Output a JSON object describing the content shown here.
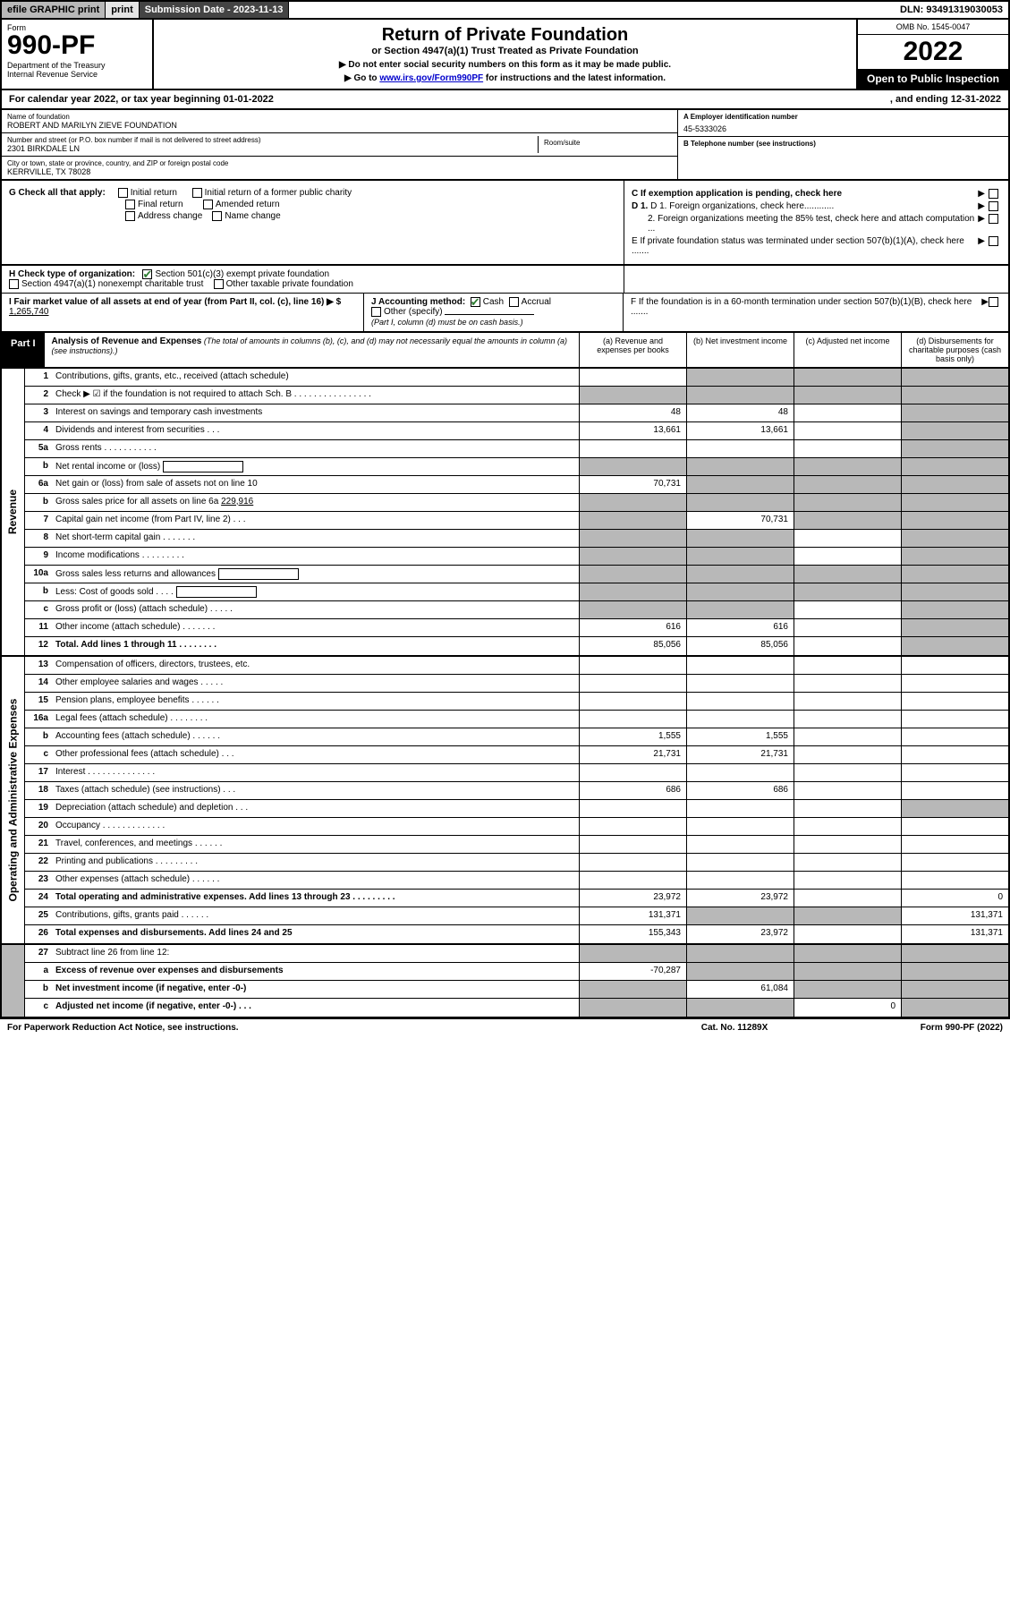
{
  "topbar": {
    "efile": "efile GRAPHIC print",
    "subdate_lbl": "Submission Date - 2023-11-13",
    "dln": "DLN: 93491319030053"
  },
  "header": {
    "form": "Form",
    "form_no": "990-PF",
    "dept": "Department of the Treasury\nInternal Revenue Service",
    "title": "Return of Private Foundation",
    "subtitle": "or Section 4947(a)(1) Trust Treated as Private Foundation",
    "instr1": "▶ Do not enter social security numbers on this form as it may be made public.",
    "instr2_pre": "▶ Go to ",
    "instr2_link": "www.irs.gov/Form990PF",
    "instr2_post": " for instructions and the latest information.",
    "omb": "OMB No. 1545-0047",
    "year": "2022",
    "open": "Open to Public Inspection"
  },
  "cal": {
    "left": "For calendar year 2022, or tax year beginning 01-01-2022",
    "right": ", and ending 12-31-2022"
  },
  "entity": {
    "name_lbl": "Name of foundation",
    "name": "ROBERT AND MARILYN ZIEVE FOUNDATION",
    "addr_lbl": "Number and street (or P.O. box number if mail is not delivered to street address)",
    "addr": "2301 BIRKDALE LN",
    "room_lbl": "Room/suite",
    "city_lbl": "City or town, state or province, country, and ZIP or foreign postal code",
    "city": "KERRVILLE, TX  78028",
    "a_lbl": "A Employer identification number",
    "a_val": "45-5333026",
    "b_lbl": "B Telephone number (see instructions)",
    "c_lbl": "C If exemption application is pending, check here",
    "d1": "D 1. Foreign organizations, check here............",
    "d2": "2. Foreign organizations meeting the 85% test, check here and attach computation ...",
    "e": "E  If private foundation status was terminated under section 507(b)(1)(A), check here .......",
    "f": "F  If the foundation is in a 60-month termination under section 507(b)(1)(B), check here ......."
  },
  "g": {
    "label": "G Check all that apply:",
    "opts": [
      "Initial return",
      "Final return",
      "Address change",
      "Initial return of a former public charity",
      "Amended return",
      "Name change"
    ]
  },
  "h": {
    "label": "H Check type of organization:",
    "opt1": "Section 501(c)(3) exempt private foundation",
    "opt2": "Section 4947(a)(1) nonexempt charitable trust",
    "opt3": "Other taxable private foundation"
  },
  "i": {
    "label": "I Fair market value of all assets at end of year (from Part II, col. (c), line 16) ▶ $",
    "val": "1,265,740"
  },
  "j": {
    "label": "J Accounting method:",
    "cash": "Cash",
    "accrual": "Accrual",
    "other": "Other (specify)",
    "note": "(Part I, column (d) must be on cash basis.)"
  },
  "part1": {
    "tab": "Part I",
    "title": "Analysis of Revenue and Expenses",
    "title_note": " (The total of amounts in columns (b), (c), and (d) may not necessarily equal the amounts in column (a) (see instructions).)",
    "col_a": "(a)  Revenue and expenses per books",
    "col_b": "(b)  Net investment income",
    "col_c": "(c)  Adjusted net income",
    "col_d": "(d)  Disbursements for charitable purposes (cash basis only)"
  },
  "sides": {
    "revenue": "Revenue",
    "expenses": "Operating and Administrative Expenses"
  },
  "rows": [
    {
      "n": "1",
      "lbl": "Contributions, gifts, grants, etc., received (attach schedule)",
      "a": "",
      "b": "g",
      "c": "g",
      "d": "g"
    },
    {
      "n": "2",
      "lbl": "Check ▶ ☑ if the foundation is not required to attach Sch. B   .  .  .  .  .  .  .  .  .  .  .  .  .  .  .  .",
      "a": "g",
      "b": "g",
      "c": "g",
      "d": "g"
    },
    {
      "n": "3",
      "lbl": "Interest on savings and temporary cash investments",
      "a": "48",
      "b": "48",
      "c": "",
      "d": "g"
    },
    {
      "n": "4",
      "lbl": "Dividends and interest from securities   .   .   .",
      "a": "13,661",
      "b": "13,661",
      "c": "",
      "d": "g"
    },
    {
      "n": "5a",
      "lbl": "Gross rents   .   .   .   .   .   .   .   .   .   .   .",
      "a": "",
      "b": "",
      "c": "",
      "d": "g"
    },
    {
      "n": "b",
      "lbl": "Net rental income or (loss)  ",
      "a": "g",
      "b": "g",
      "c": "g",
      "d": "g",
      "inline": true
    },
    {
      "n": "6a",
      "lbl": "Net gain or (loss) from sale of assets not on line 10",
      "a": "70,731",
      "b": "g",
      "c": "g",
      "d": "g"
    },
    {
      "n": "b",
      "lbl": "Gross sales price for all assets on line 6a ________",
      "a": "g",
      "b": "g",
      "c": "g",
      "d": "g",
      "inline_val": "229,916"
    },
    {
      "n": "7",
      "lbl": "Capital gain net income (from Part IV, line 2)   .   .   .",
      "a": "g",
      "b": "70,731",
      "c": "g",
      "d": "g"
    },
    {
      "n": "8",
      "lbl": "Net short-term capital gain   .   .   .   .   .   .   .",
      "a": "g",
      "b": "g",
      "c": "",
      "d": "g"
    },
    {
      "n": "9",
      "lbl": "Income modifications  .   .   .   .   .   .   .   .   .",
      "a": "g",
      "b": "g",
      "c": "",
      "d": "g"
    },
    {
      "n": "10a",
      "lbl": "Gross sales less returns and allowances",
      "a": "g",
      "b": "g",
      "c": "g",
      "d": "g",
      "inline": true
    },
    {
      "n": "b",
      "lbl": "Less: Cost of goods sold   .   .   .   .",
      "a": "g",
      "b": "g",
      "c": "g",
      "d": "g",
      "inline": true
    },
    {
      "n": "c",
      "lbl": "Gross profit or (loss) (attach schedule)   .   .   .   .   .",
      "a": "g",
      "b": "g",
      "c": "",
      "d": "g"
    },
    {
      "n": "11",
      "lbl": "Other income (attach schedule)   .   .   .   .   .   .   .",
      "a": "616",
      "b": "616",
      "c": "",
      "d": "g"
    },
    {
      "n": "12",
      "lbl": "Total. Add lines 1 through 11   .   .   .   .   .   .   .   .",
      "a": "85,056",
      "b": "85,056",
      "c": "",
      "d": "g",
      "bold": true
    }
  ],
  "exprows": [
    {
      "n": "13",
      "lbl": "Compensation of officers, directors, trustees, etc.",
      "a": "",
      "b": "",
      "c": "",
      "d": ""
    },
    {
      "n": "14",
      "lbl": "Other employee salaries and wages   .   .   .   .   .",
      "a": "",
      "b": "",
      "c": "",
      "d": ""
    },
    {
      "n": "15",
      "lbl": "Pension plans, employee benefits  .   .   .   .   .   .",
      "a": "",
      "b": "",
      "c": "",
      "d": ""
    },
    {
      "n": "16a",
      "lbl": "Legal fees (attach schedule)  .   .   .   .   .   .   .   .",
      "a": "",
      "b": "",
      "c": "",
      "d": ""
    },
    {
      "n": "b",
      "lbl": "Accounting fees (attach schedule)  .   .   .   .   .   .",
      "a": "1,555",
      "b": "1,555",
      "c": "",
      "d": ""
    },
    {
      "n": "c",
      "lbl": "Other professional fees (attach schedule)   .   .   .",
      "a": "21,731",
      "b": "21,731",
      "c": "",
      "d": ""
    },
    {
      "n": "17",
      "lbl": "Interest  .   .   .   .   .   .   .   .   .   .   .   .   .   .",
      "a": "",
      "b": "",
      "c": "",
      "d": ""
    },
    {
      "n": "18",
      "lbl": "Taxes (attach schedule) (see instructions)   .   .   .",
      "a": "686",
      "b": "686",
      "c": "",
      "d": ""
    },
    {
      "n": "19",
      "lbl": "Depreciation (attach schedule) and depletion   .   .   .",
      "a": "",
      "b": "",
      "c": "",
      "d": "g"
    },
    {
      "n": "20",
      "lbl": "Occupancy  .   .   .   .   .   .   .   .   .   .   .   .   .",
      "a": "",
      "b": "",
      "c": "",
      "d": ""
    },
    {
      "n": "21",
      "lbl": "Travel, conferences, and meetings  .   .   .   .   .   .",
      "a": "",
      "b": "",
      "c": "",
      "d": ""
    },
    {
      "n": "22",
      "lbl": "Printing and publications  .   .   .   .   .   .   .   .   .",
      "a": "",
      "b": "",
      "c": "",
      "d": ""
    },
    {
      "n": "23",
      "lbl": "Other expenses (attach schedule)  .   .   .   .   .   .",
      "a": "",
      "b": "",
      "c": "",
      "d": ""
    },
    {
      "n": "24",
      "lbl": "Total operating and administrative expenses. Add lines 13 through 23   .   .   .   .   .   .   .   .   .",
      "a": "23,972",
      "b": "23,972",
      "c": "",
      "d": "0",
      "bold": true
    },
    {
      "n": "25",
      "lbl": "Contributions, gifts, grants paid   .   .   .   .   .   .",
      "a": "131,371",
      "b": "g",
      "c": "g",
      "d": "131,371"
    },
    {
      "n": "26",
      "lbl": "Total expenses and disbursements. Add lines 24 and 25",
      "a": "155,343",
      "b": "23,972",
      "c": "",
      "d": "131,371",
      "bold": true
    }
  ],
  "netrows": [
    {
      "n": "27",
      "lbl": "Subtract line 26 from line 12:",
      "a": "g",
      "b": "g",
      "c": "g",
      "d": "g"
    },
    {
      "n": "a",
      "lbl": "Excess of revenue over expenses and disbursements",
      "a": "-70,287",
      "b": "g",
      "c": "g",
      "d": "g",
      "bold": true
    },
    {
      "n": "b",
      "lbl": "Net investment income (if negative, enter -0-)",
      "a": "g",
      "b": "61,084",
      "c": "g",
      "d": "g",
      "bold": true
    },
    {
      "n": "c",
      "lbl": "Adjusted net income (if negative, enter -0-)   .   .   .",
      "a": "g",
      "b": "g",
      "c": "0",
      "d": "g",
      "bold": true
    }
  ],
  "footer": {
    "l": "For Paperwork Reduction Act Notice, see instructions.",
    "m": "Cat. No. 11289X",
    "r": "Form 990-PF (2022)"
  },
  "colors": {
    "grey_dark": "#444444",
    "grey_mid": "#b8b8b8",
    "grey_light": "#e4e4e4",
    "check_green": "#2e7d32"
  }
}
